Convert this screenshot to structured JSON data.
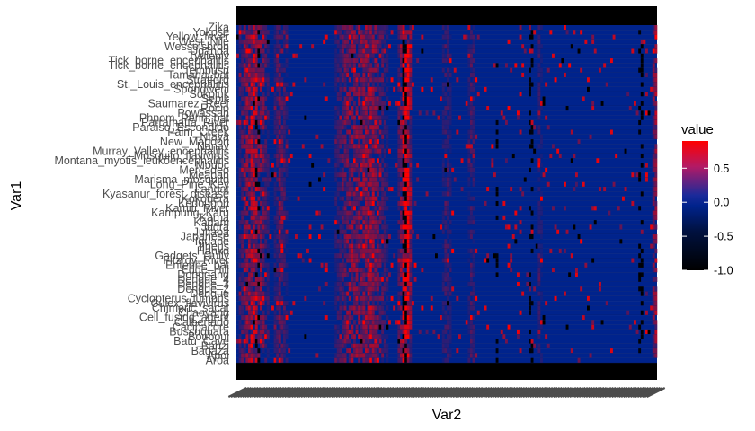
{
  "chart_data": {
    "type": "heatmap",
    "xlabel": "Var2",
    "ylabel": "Var1",
    "legend": {
      "title": "value",
      "ticks": [
        {
          "label": "0.5",
          "value": 0.5
        },
        {
          "label": "0.0",
          "value": 0.0
        },
        {
          "label": "-0.5",
          "value": -0.5
        },
        {
          "label": "-1.0",
          "value": -1.0
        }
      ],
      "range": [
        -1.0,
        0.9
      ],
      "position": "right"
    },
    "colors": {
      "low": "#000000",
      "mid": "#00238C",
      "high": "#FF0000",
      "padding_rows": "#000000"
    },
    "y_categories": [
      "Zika",
      "Yokose",
      "Yellow_fever",
      "West_Nile",
      "Wesselsbron",
      "Uganda",
      "Tyuleniy",
      "Tick_borne_encephalitis",
      "Tick_borne_encephalitis",
      "Tembusu",
      "Tamana_bat",
      "Stratford",
      "St._Louis_encephalitis",
      "Spondweni",
      "Sokoluk",
      "Sepik",
      "Saumarez_Reef",
      "Rocio",
      "Powassan",
      "Phnom_Penh_bat",
      "Parramatta_River",
      "Paraiso_Escondido",
      "Palm_Creek",
      "Ntaya",
      "New_Mapoon",
      "Nanay",
      "Murray_Valley_encephalitis",
      "Mosquito_flavivirus",
      "Montana_myotis_leukoencephalitis",
      "Modoc",
      "Mercadeo",
      "Meaban",
      "Marisma_mosquito",
      "Long_Pine_Key",
      "Langat",
      "Kyasanur_forest_disease",
      "Kokobera",
      "Kedougou",
      "Kamiti_River",
      "Kampung_Karu",
      "Karna",
      "Kadam",
      "Jugra",
      "Jutiapa",
      "Japanese",
      "Iguape",
      "Ilheus",
      "Hanko",
      "Gadgets_Gully",
      "Fitzroy_River",
      "Entebbe_bat",
      "Edge_Hill",
      "Donggang",
      "Dengue_4",
      "Dengue_3",
      "Dengue_2",
      "Dengue",
      "Cyclopterus_lumpus",
      "Culex_flavivirus",
      "Chimeric_sacat",
      "Chaoyang",
      "Cell_fusing_agent",
      "Calbertado",
      "Cacipacore",
      "Bussuquara",
      "Bouboui",
      "Batu_Cave",
      "Banzi",
      "Bagaza",
      "Apoi",
      "Aroa"
    ],
    "x_category_count": 180,
    "x_tick_labels_note": "",
    "pattern": {
      "hot_columns": [
        {
          "center": 0.03,
          "width": 0.015,
          "strength": 0.55
        },
        {
          "center": 0.055,
          "width": 0.015,
          "strength": 0.5
        },
        {
          "center": 0.105,
          "width": 0.01,
          "strength": 0.35
        },
        {
          "center": 0.28,
          "width": 0.03,
          "strength": 0.5
        },
        {
          "center": 0.33,
          "width": 0.02,
          "strength": 0.45
        },
        {
          "center": 0.4,
          "width": 0.012,
          "strength": 0.6
        },
        {
          "center": 0.405,
          "width": 0.006,
          "strength": 0.9
        },
        {
          "center": 0.5,
          "width": 0.008,
          "strength": 0.25
        },
        {
          "center": 0.56,
          "width": 0.006,
          "strength": 0.25
        },
        {
          "center": 0.72,
          "width": 0.004,
          "strength": 0.2
        },
        {
          "center": 0.995,
          "width": 0.004,
          "strength": 0.6
        }
      ],
      "dark_columns": [
        0.05,
        0.4,
        0.62,
        0.7,
        0.96
      ]
    }
  }
}
